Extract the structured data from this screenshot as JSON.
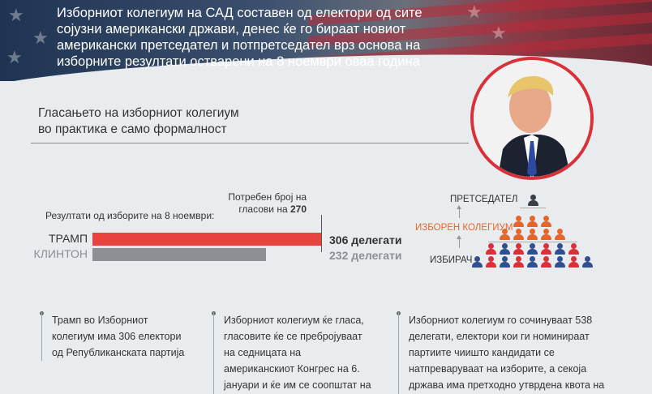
{
  "header": {
    "text_lines": [
      "Изборниот колегиум на САД составен од електори од сите",
      "сојузни американски држави, денес ќе го  бираат новиот",
      "американски претседател и потпретседател врз основа на",
      "изборните резултати остварени на 8 ноември оваа година"
    ]
  },
  "section": {
    "title_lines": [
      "Гласањето на изборниот колегиум",
      "во практика е само формалност"
    ]
  },
  "results": {
    "label": "Резултати од изборите на 8 ноември:",
    "needed_prefix": "Потребен број на",
    "needed_text": "гласови на",
    "needed_value": "270",
    "candidates": [
      {
        "name": "ТРАМП",
        "value_label": "306 делегати",
        "votes": 306,
        "color": "#e8423f",
        "label_color": "#333333"
      },
      {
        "name": "КЛИНТОН",
        "value_label": "232 делегати",
        "votes": 232,
        "color": "#8c8f93",
        "label_color": "#8c8f93"
      }
    ],
    "threshold": 270,
    "max": 306
  },
  "pyramid": {
    "labels": [
      "ПРЕТСЕДАТЕЛ",
      "ИЗБОРЕН КОЛЕГИУМ",
      "ИЗБИРАЧ"
    ],
    "colors": {
      "top": "#3a3f47",
      "middle": "#e8652a",
      "bottom_a": "#d9303a",
      "bottom_b": "#2f4f8f"
    }
  },
  "notes": [
    {
      "lines": [
        "Трамп во Изборниот",
        "колегиум има 306 електори",
        "од Републиканската партија"
      ]
    },
    {
      "lines": [
        "Изборниот колегиум ќе гласа,",
        "гласовите ќе се пребројуваат",
        "на седницата на",
        "американскиот Конгрес на 6.",
        "јануари и ќе им се соопштат на"
      ]
    },
    {
      "lines": [
        "Изборниот колегиум го сочинуваат 538",
        "делегати, електори кои ги номинираат",
        "партиите чиишто кандидати се",
        "натпреваруваат на изборите, а секоја",
        "држава има претходно утврдена квота на"
      ]
    }
  ]
}
